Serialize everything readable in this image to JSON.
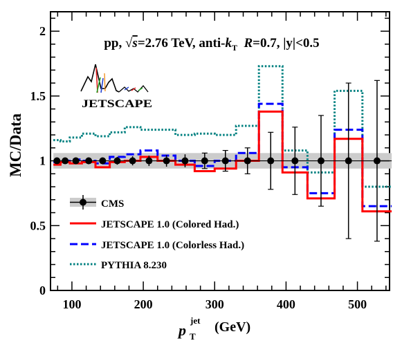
{
  "chart_data": {
    "type": "line",
    "title": "pp, √s=2.76 TeV, anti-kT R=0.7, |y|<0.5",
    "title_parts": {
      "pre": "pp, ",
      "sqrt": "√",
      "s": "s",
      "energy": "=2.76 TeV, anti-",
      "k": "k",
      "k_sub": "T",
      "R": "R",
      "rest": "=0.7, |y|<0.5"
    },
    "ylabel": "MC/Data",
    "xlabel": {
      "p": "p",
      "sup": "jet",
      "sub": "T",
      "unit": "(GeV)"
    },
    "xlim": [
      70,
      545
    ],
    "ylim": [
      0,
      2.15
    ],
    "x_ticks": [
      100,
      200,
      300,
      400,
      500
    ],
    "x_tick_labels": [
      "100",
      "200",
      "300",
      "400",
      "500"
    ],
    "y_ticks": [
      0,
      0.5,
      1,
      1.5,
      2
    ],
    "y_tick_labels": [
      "0",
      "0.5",
      "1",
      "1.5",
      "2"
    ],
    "logo": "JETSCAPE",
    "legend": {
      "position": "bottom-left",
      "entries": [
        {
          "label": "CMS",
          "style": "marker"
        },
        {
          "label": "JETSCAPE 1.0 (Colored Had.)",
          "style": "solid"
        },
        {
          "label": "JETSCAPE 1.0 (Colorless Had.)",
          "style": "dashed"
        },
        {
          "label": "PYTHIA 8.230",
          "style": "dotted"
        }
      ]
    },
    "bin_edges": [
      74,
      84,
      97,
      114,
      133,
      153,
      174,
      196,
      220,
      245,
      272,
      300,
      330,
      362,
      395,
      430,
      468,
      507,
      548
    ],
    "series": [
      {
        "name": "CMS",
        "color": "#000000",
        "x": [
          79,
          90.5,
          105.5,
          123.5,
          143,
          163.5,
          185,
          208,
          232.5,
          258.5,
          286,
          315,
          346,
          378.5,
          412.5,
          449,
          487.5,
          527.5
        ],
        "y": [
          1,
          1,
          1,
          1,
          1,
          1,
          1,
          1,
          1,
          1,
          1,
          1,
          1,
          1,
          1,
          1,
          1,
          1
        ],
        "yerr": [
          0.02,
          0.02,
          0.025,
          0.025,
          0.025,
          0.03,
          0.035,
          0.04,
          0.045,
          0.05,
          0.06,
          0.08,
          0.1,
          0.22,
          0.26,
          0.35,
          0.6,
          0.62
        ],
        "syst_band": [
          0.94,
          1.06
        ]
      },
      {
        "name": "JETSCAPE 1.0 (Colored Had.)",
        "color": "#ff0000",
        "y": [
          0.97,
          0.99,
          0.98,
          0.99,
          0.95,
          0.99,
          1.0,
          1.03,
          1.0,
          0.97,
          0.92,
          0.94,
          1.0,
          1.38,
          0.91,
          0.71,
          1.17,
          0.61
        ]
      },
      {
        "name": "JETSCAPE 1.0 (Colorless Had.)",
        "color": "#0000ff",
        "y": [
          0.99,
          1.0,
          1.01,
          1.0,
          0.98,
          1.03,
          1.05,
          1.08,
          1.04,
          1.0,
          0.96,
          1.0,
          1.06,
          1.44,
          0.95,
          0.75,
          1.24,
          0.65
        ]
      },
      {
        "name": "PYTHIA 8.230",
        "color": "#008080",
        "y": [
          1.16,
          1.15,
          1.18,
          1.21,
          1.19,
          1.22,
          1.26,
          1.24,
          1.24,
          1.2,
          1.21,
          1.2,
          1.27,
          1.73,
          1.08,
          0.91,
          1.54,
          0.8
        ]
      }
    ]
  }
}
